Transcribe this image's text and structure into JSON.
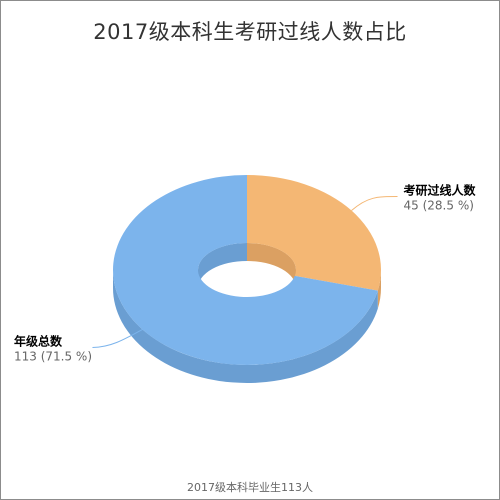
{
  "chart_data": {
    "type": "pie",
    "title": "2017级本科生考研过线人数占比",
    "caption": "2017级本科毕业生113人",
    "donut": true,
    "three_d": true,
    "slices": [
      {
        "name": "考研过线人数",
        "value": 45,
        "value_text": "45 (28.5 %)",
        "color": "#f4b774",
        "side_color": "#dba062"
      },
      {
        "name": "年级总数",
        "value": 113,
        "value_text": "113 (71.5 %)",
        "color": "#7cb4ec",
        "side_color": "#6a9ed2"
      }
    ]
  }
}
